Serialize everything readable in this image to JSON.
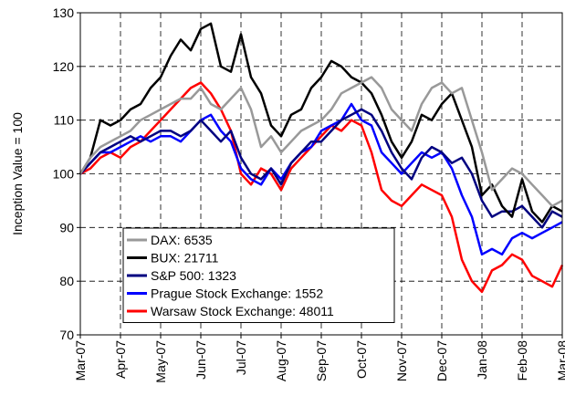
{
  "chart_data": {
    "type": "line",
    "y_label": "Inception Value = 100",
    "categories": [
      "Mar-07",
      null,
      null,
      null,
      "Apr-07",
      null,
      null,
      null,
      "May-07",
      null,
      null,
      null,
      "Jun-07",
      null,
      null,
      null,
      "Jul-07",
      null,
      null,
      null,
      "Aug-07",
      null,
      null,
      null,
      "Sep-07",
      null,
      null,
      null,
      "Oct-07",
      null,
      null,
      null,
      "Nov-07",
      null,
      null,
      null,
      "Dec-07",
      null,
      null,
      null,
      "Jan-08",
      null,
      null,
      null,
      "Feb-08",
      null,
      null,
      null,
      "Mar-08"
    ],
    "series": [
      {
        "name": "DAX: 6535",
        "color": "#999999",
        "values": [
          100,
          103,
          105,
          106,
          107,
          108,
          110,
          111,
          112,
          113,
          114,
          114,
          116,
          113,
          112,
          114,
          116,
          112,
          105,
          107,
          104,
          106,
          108,
          109,
          110,
          112,
          115,
          116,
          117,
          118,
          116,
          112,
          110,
          108,
          113,
          116,
          117,
          115,
          116,
          110,
          104,
          97,
          99,
          101,
          100,
          98,
          96,
          94,
          95
        ]
      },
      {
        "name": "BUX: 21711",
        "color": "#000000",
        "values": [
          100,
          103,
          110,
          109,
          110,
          112,
          113,
          116,
          118,
          122,
          125,
          123,
          127,
          128,
          120,
          119,
          126,
          118,
          115,
          109,
          107,
          111,
          112,
          116,
          118,
          121,
          120,
          118,
          117,
          115,
          111,
          106,
          103,
          106,
          111,
          110,
          113,
          115,
          110,
          105,
          96,
          98,
          94,
          92,
          99,
          93,
          91,
          94,
          93
        ]
      },
      {
        "name": "S&P 500: 1323",
        "color": "#000080",
        "values": [
          100,
          102,
          104,
          105,
          106,
          107,
          106,
          107,
          108,
          108,
          107,
          108,
          110,
          108,
          106,
          108,
          103,
          100,
          99,
          101,
          98,
          102,
          104,
          106,
          106,
          108,
          110,
          111,
          112,
          111,
          108,
          104,
          101,
          99,
          103,
          105,
          104,
          102,
          103,
          100,
          95,
          92,
          93,
          93,
          94,
          92,
          90,
          93,
          92
        ]
      },
      {
        "name": "Prague Stock Exchange: 1552",
        "color": "#0000ff",
        "values": [
          100,
          102,
          104,
          104,
          105,
          106,
          107,
          106,
          107,
          107,
          106,
          108,
          110,
          111,
          108,
          106,
          101,
          99,
          98,
          101,
          99,
          102,
          104,
          105,
          108,
          109,
          110,
          113,
          110,
          109,
          104,
          102,
          100,
          102,
          104,
          103,
          104,
          101,
          96,
          92,
          85,
          86,
          85,
          88,
          89,
          88,
          89,
          90,
          91
        ]
      },
      {
        "name": "Warsaw Stock Exchange: 48011",
        "color": "#ff0000",
        "values": [
          100,
          101,
          103,
          104,
          103,
          105,
          106,
          108,
          110,
          112,
          114,
          116,
          117,
          115,
          112,
          108,
          100,
          98,
          101,
          100,
          97,
          101,
          103,
          105,
          107,
          109,
          108,
          110,
          109,
          104,
          97,
          95,
          94,
          96,
          98,
          97,
          96,
          92,
          84,
          80,
          78,
          82,
          83,
          85,
          84,
          81,
          80,
          79,
          83
        ]
      }
    ],
    "ylim": [
      70,
      130
    ],
    "yticks": [
      70,
      80,
      90,
      100,
      110,
      120,
      130
    ],
    "grid": true
  }
}
